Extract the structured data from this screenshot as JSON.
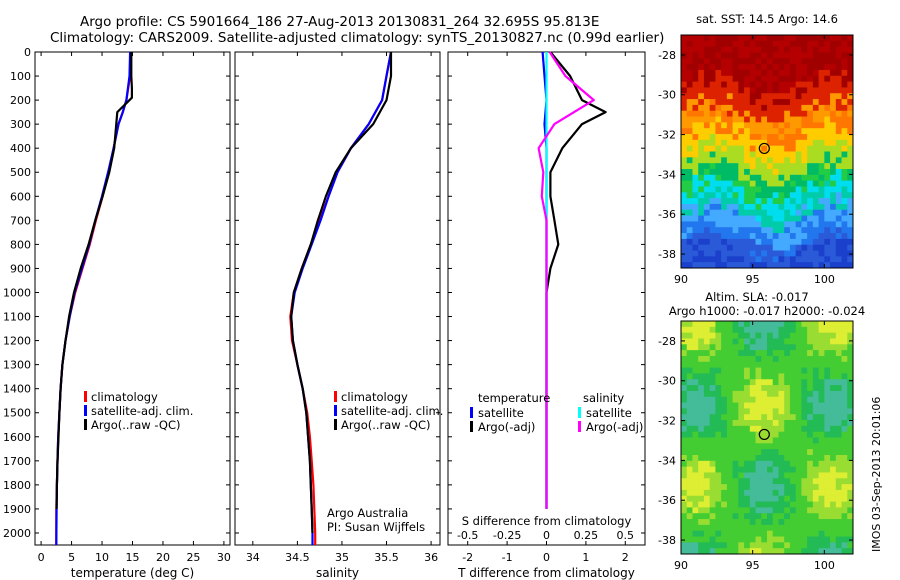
{
  "header": {
    "line1": "Argo profile: CS 5901664_186 27-Aug-2013 20130831_264 32.695S 95.813E",
    "line2": "Climatology: CARS2009. Satellite-adjusted climatology: synTS_20130827.nc (0.99d earlier)"
  },
  "stamp": "IMOS 03-Sep-2013 20:01:06",
  "colors": {
    "climatology": "#ff0000",
    "satellite": "#0000ff",
    "argo": "#000000",
    "sat_salinity": "#00ffff",
    "argo_salinity": "#ff00ff"
  },
  "chart_data": [
    {
      "type": "line",
      "xlabel": "temperature (deg C)",
      "xlim": [
        -1,
        31
      ],
      "xticks": [
        0,
        5,
        10,
        15,
        20,
        25,
        30
      ],
      "ylim": [
        2050,
        0
      ],
      "yticks": [
        0,
        100,
        200,
        300,
        400,
        500,
        600,
        700,
        800,
        900,
        1000,
        1100,
        1200,
        1300,
        1400,
        1500,
        1600,
        1700,
        1800,
        1900,
        2000
      ],
      "legend": [
        "climatology",
        "satellite-adj. clim.",
        "Argo(..raw -QC)"
      ],
      "legend_position": "bottom-right",
      "series": [
        {
          "name": "climatology",
          "color": "#ff0000",
          "x": [
            14.7,
            14.6,
            14.0,
            13.4,
            12.7,
            11.9,
            11.1,
            10.1,
            9.0,
            8.0,
            6.8,
            5.6,
            4.7,
            4.0,
            3.5,
            3.2,
            3.0,
            2.8,
            2.7,
            2.6,
            2.5,
            2.5
          ],
          "y": [
            0,
            100,
            200,
            250,
            300,
            400,
            500,
            600,
            700,
            800,
            900,
            1000,
            1100,
            1200,
            1300,
            1400,
            1500,
            1600,
            1700,
            1800,
            1900,
            2050
          ]
        },
        {
          "name": "satellite-adj. clim.",
          "color": "#0000ff",
          "x": [
            14.6,
            14.5,
            14.0,
            13.4,
            12.7,
            11.9,
            11.0,
            10.0,
            8.9,
            7.9,
            6.7,
            5.5,
            4.7,
            4.0,
            3.5,
            3.2,
            3.0,
            2.8,
            2.7,
            2.6,
            2.55,
            2.5
          ],
          "y": [
            0,
            100,
            200,
            250,
            300,
            400,
            500,
            600,
            700,
            800,
            900,
            1000,
            1100,
            1200,
            1300,
            1400,
            1500,
            1600,
            1700,
            1800,
            1900,
            2050
          ]
        },
        {
          "name": "Argo(..raw -QC)",
          "color": "#000000",
          "x": [
            14.8,
            14.8,
            14.9,
            14.9,
            12.5,
            12.0,
            11.2,
            10.1,
            8.9,
            7.8,
            6.5,
            5.4,
            4.6,
            4.0,
            3.5,
            3.2,
            3.0,
            2.85,
            2.7,
            2.6,
            2.55
          ],
          "y": [
            0,
            100,
            150,
            190,
            250,
            400,
            500,
            600,
            700,
            800,
            900,
            1000,
            1100,
            1200,
            1300,
            1400,
            1500,
            1600,
            1700,
            1800,
            1900
          ]
        }
      ]
    },
    {
      "type": "line",
      "xlabel": "salinity",
      "xlim": [
        33.8,
        36.1
      ],
      "xticks": [
        34,
        34.5,
        35,
        35.5,
        36
      ],
      "xticklabels": [
        "34",
        "34.5",
        "35",
        "35.5",
        "36"
      ],
      "ylim": [
        2050,
        0
      ],
      "legend": [
        "climatology",
        "satellite-adj. clim.",
        "Argo(..raw -QC)"
      ],
      "legend_position": "bottom-right",
      "annotation": [
        "Argo Australia",
        "PI: Susan Wijffels"
      ],
      "series": [
        {
          "name": "climatology",
          "color": "#ff0000",
          "x": [
            35.55,
            35.5,
            35.45,
            35.3,
            35.1,
            34.95,
            34.85,
            34.75,
            34.65,
            34.55,
            34.46,
            34.42,
            34.44,
            34.5,
            34.56,
            34.61,
            34.64,
            34.66,
            34.68,
            34.69,
            34.7,
            34.7
          ],
          "y": [
            0,
            100,
            200,
            300,
            400,
            500,
            600,
            700,
            800,
            900,
            1000,
            1100,
            1200,
            1300,
            1400,
            1500,
            1600,
            1700,
            1800,
            1900,
            2000,
            2050
          ]
        },
        {
          "name": "satellite-adj. clim.",
          "color": "#0000ff",
          "x": [
            35.55,
            35.5,
            35.45,
            35.3,
            35.1,
            34.95,
            34.85,
            34.76,
            34.66,
            34.56,
            34.47,
            34.43,
            34.45,
            34.5,
            34.56,
            34.6,
            34.62,
            34.64,
            34.65,
            34.66,
            34.67,
            34.67
          ],
          "y": [
            0,
            100,
            200,
            300,
            400,
            500,
            600,
            700,
            800,
            900,
            1000,
            1100,
            1200,
            1300,
            1400,
            1500,
            1600,
            1700,
            1800,
            1900,
            2000,
            2050
          ]
        },
        {
          "name": "Argo(..raw -QC)",
          "color": "#000000",
          "x": [
            35.55,
            35.55,
            35.5,
            35.35,
            35.1,
            34.93,
            34.82,
            34.73,
            34.65,
            34.55,
            34.46,
            34.43,
            34.45,
            34.5,
            34.56,
            34.6,
            34.62,
            34.64,
            34.65,
            34.66,
            34.67
          ],
          "y": [
            0,
            100,
            200,
            300,
            400,
            500,
            600,
            700,
            800,
            900,
            1000,
            1100,
            1200,
            1300,
            1400,
            1500,
            1600,
            1700,
            1800,
            1900,
            2000
          ]
        }
      ]
    },
    {
      "type": "line",
      "xlabel": "T difference from climatology",
      "xlabel2": "S difference from climatology",
      "xlim": [
        -2.5,
        2.5
      ],
      "xticks": [
        -2,
        -1,
        0,
        1,
        2
      ],
      "xticks2": [
        -0.5,
        -0.25,
        0,
        0.25,
        0.5
      ],
      "xlim2": [
        -0.625,
        0.625
      ],
      "ylim": [
        2050,
        0
      ],
      "legend_titles": [
        "temperature",
        "salinity"
      ],
      "legend": [
        "satellite",
        "Argo(-adj)",
        "satellite",
        "Argo(-adj)"
      ],
      "legend_position": "bottom",
      "series": [
        {
          "name": "temperature satellite",
          "color": "#0000ff",
          "x": [
            -0.1,
            -0.05,
            0,
            -0.05,
            0,
            0,
            0,
            0,
            0,
            0,
            0,
            0,
            0,
            0,
            0,
            0,
            0,
            0,
            0,
            0
          ],
          "y": [
            0,
            100,
            200,
            300,
            400,
            500,
            600,
            700,
            800,
            900,
            1000,
            1100,
            1200,
            1300,
            1400,
            1500,
            1600,
            1700,
            1800,
            1900
          ]
        },
        {
          "name": "temperature Argo(-adj)",
          "color": "#000000",
          "x": [
            0.1,
            0.6,
            0.9,
            1.5,
            0.9,
            0.4,
            0.1,
            0.1,
            0.2,
            0.3,
            0.1,
            0,
            0,
            0,
            0,
            0,
            0,
            0,
            0
          ],
          "y": [
            0,
            100,
            200,
            250,
            300,
            400,
            500,
            600,
            700,
            800,
            900,
            1000,
            1100,
            1200,
            1300,
            1400,
            1500,
            1600,
            1900
          ]
        },
        {
          "name": "salinity satellite",
          "color": "#00ffff",
          "x": [
            0,
            0,
            0,
            0,
            0,
            0,
            0,
            0,
            0,
            0,
            0,
            0,
            0,
            0,
            0,
            0,
            0,
            0,
            0,
            0
          ],
          "y": [
            0,
            100,
            200,
            300,
            400,
            500,
            600,
            700,
            800,
            900,
            1000,
            1100,
            1200,
            1300,
            1400,
            1500,
            1600,
            1700,
            1800,
            1900
          ]
        },
        {
          "name": "salinity Argo(-adj)",
          "color": "#ff00ff",
          "x": [
            0.02,
            0.12,
            0.3,
            0.05,
            -0.05,
            -0.02,
            -0.03,
            0,
            0,
            0,
            0,
            0,
            0,
            0,
            0,
            0,
            0,
            0
          ],
          "y": [
            0,
            100,
            200,
            300,
            400,
            500,
            600,
            700,
            800,
            900,
            1000,
            1100,
            1200,
            1300,
            1400,
            1500,
            1600,
            1900
          ]
        }
      ]
    },
    {
      "type": "heatmap",
      "title": "sat. SST: 14.5 Argo: 14.6",
      "xlim": [
        90,
        102
      ],
      "xticks": [
        90,
        95,
        100
      ],
      "ylim": [
        -38.7,
        -27
      ],
      "yticks": [
        -38,
        -36,
        -34,
        -32,
        -30,
        -28
      ],
      "marker": [
        95.813,
        -32.695
      ]
    },
    {
      "type": "heatmap",
      "title": "Altim. SLA: -0.017",
      "subtitle": "Argo h1000: -0.017 h2000: -0.024",
      "xlim": [
        90,
        102
      ],
      "xticks": [
        90,
        95,
        100
      ],
      "ylim": [
        -38.7,
        -27
      ],
      "yticks": [
        -38,
        -36,
        -34,
        -32,
        -30,
        -28
      ],
      "marker": [
        95.813,
        -32.695
      ]
    }
  ]
}
